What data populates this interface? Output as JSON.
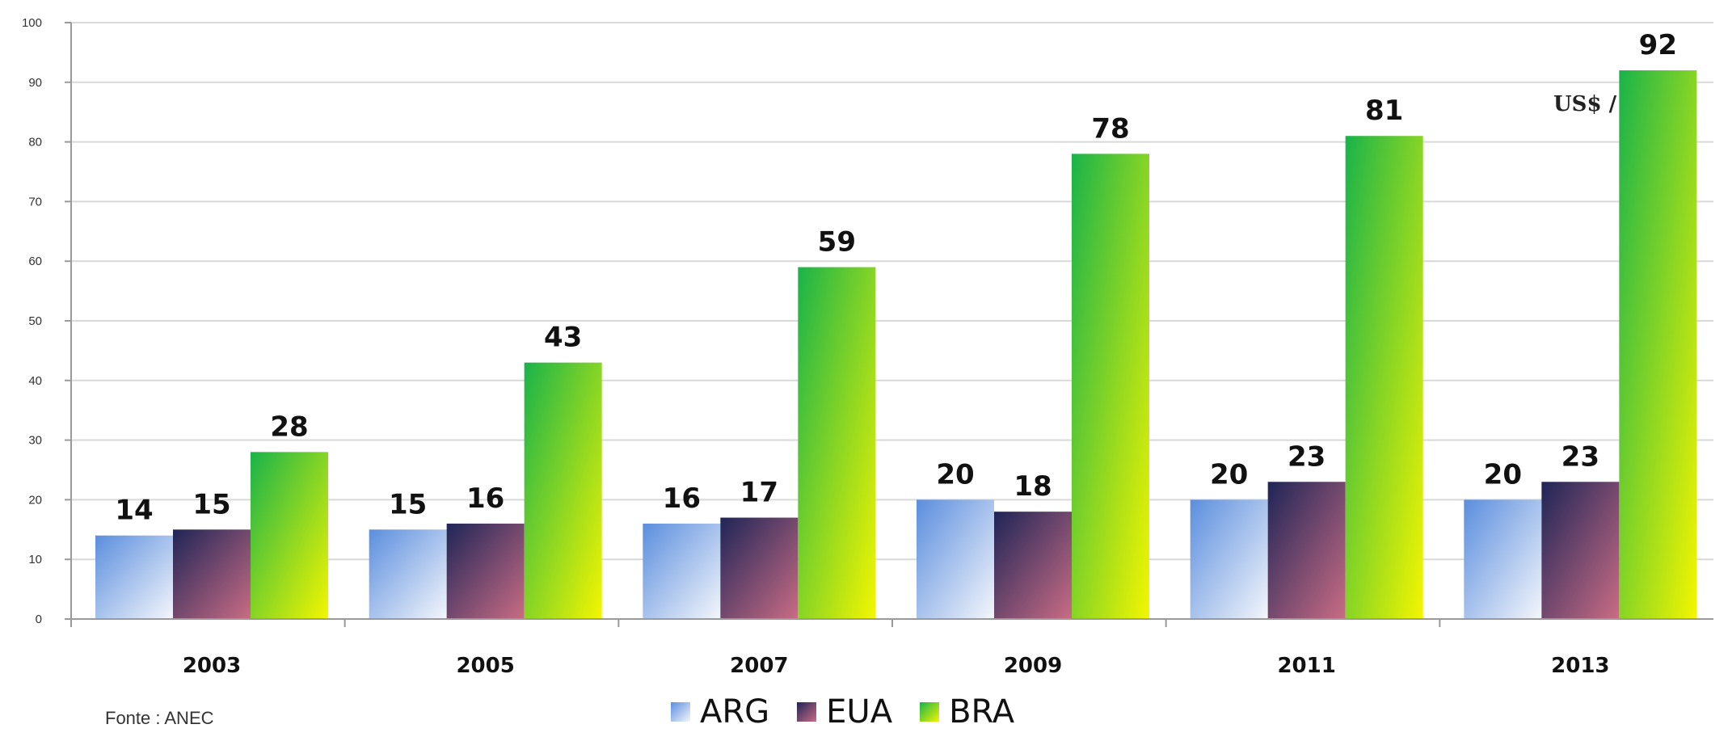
{
  "chart_data": {
    "type": "bar",
    "categories": [
      "2003",
      "2005",
      "2007",
      "2009",
      "2011",
      "2013"
    ],
    "series": [
      {
        "name": "ARG",
        "values": [
          14,
          15,
          16,
          20,
          20,
          20
        ]
      },
      {
        "name": "EUA",
        "values": [
          15,
          16,
          17,
          18,
          23,
          23
        ]
      },
      {
        "name": "BRA",
        "values": [
          28,
          43,
          59,
          78,
          81,
          92
        ]
      }
    ],
    "ylim": [
      0,
      100
    ],
    "yticks": [
      0,
      10,
      20,
      30,
      40,
      50,
      60,
      70,
      80,
      90,
      100
    ],
    "grid": true,
    "legend": "bottom-center",
    "annotation": "US$ /",
    "source": "Fonte : ANEC",
    "colors": {
      "ARG": [
        "#5b8ede",
        "#f4f6fb"
      ],
      "EUA": [
        "#1f2557",
        "#c96c84"
      ],
      "BRA": [
        "#19b34a",
        "#f4f600"
      ]
    }
  }
}
